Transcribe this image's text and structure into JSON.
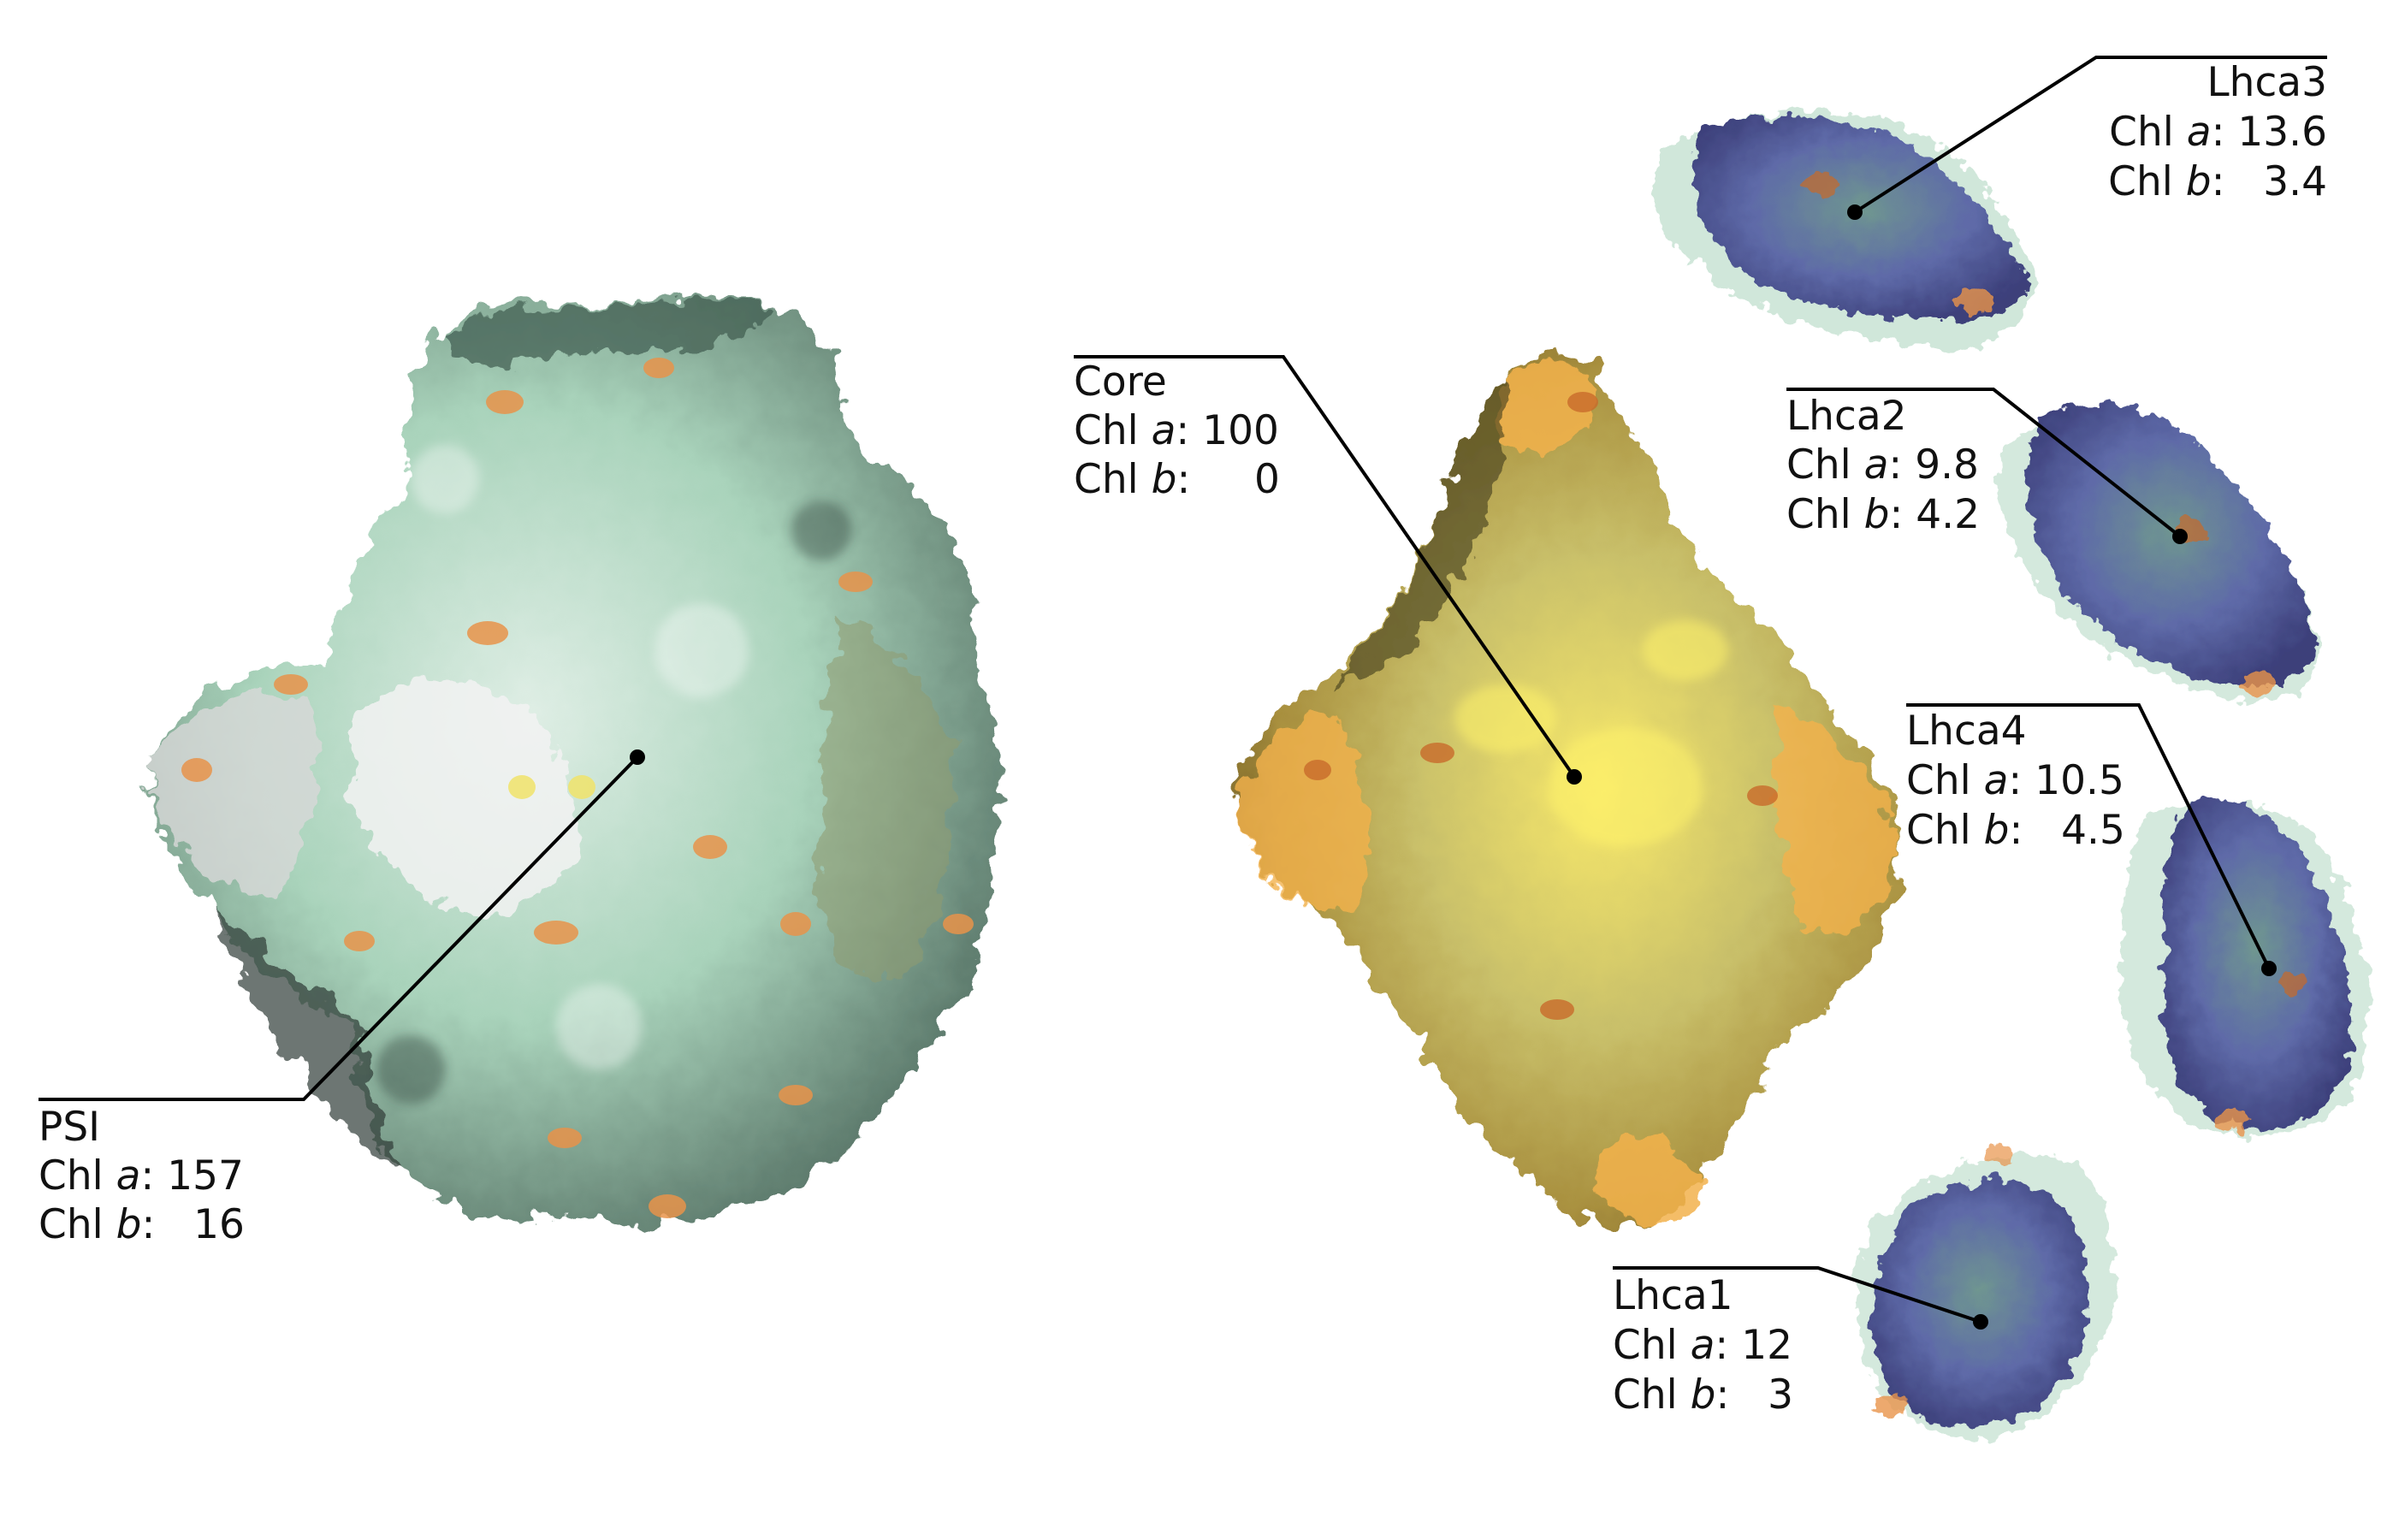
{
  "colors": {
    "psi_base": "#a9d3bb",
    "psi_shadow": "#2f3b36",
    "psi_highlight": "#efefef",
    "core_base": "#c9c06a",
    "core_orange": "#f2b24c",
    "core_yellow": "#fff06a",
    "lhc_blue": "#6b6fb8",
    "lhc_teal": "#4c7f78",
    "chlorophyll_orange": "#e8934a",
    "leader_line": "#000000"
  },
  "labels": {
    "psi": {
      "name": "PSI",
      "chl_a_prefix": "Chl ",
      "chl_a_var": "a",
      "chl_a_value": ": 157",
      "chl_b_prefix": "Chl ",
      "chl_b_var": "b",
      "chl_b_value": ":   16"
    },
    "core": {
      "name": "Core",
      "chl_a_prefix": "Chl ",
      "chl_a_var": "a",
      "chl_a_value": ": 100",
      "chl_b_prefix": "Chl ",
      "chl_b_var": "b",
      "chl_b_value": ":     0"
    },
    "lhca1": {
      "name": "Lhca1",
      "chl_a_prefix": "Chl ",
      "chl_a_var": "a",
      "chl_a_value": ": 12",
      "chl_b_prefix": "Chl ",
      "chl_b_var": "b",
      "chl_b_value": ":   3"
    },
    "lhca2": {
      "name": "Lhca2",
      "chl_a_prefix": "Chl ",
      "chl_a_var": "a",
      "chl_a_value": ": 9.8",
      "chl_b_prefix": "Chl ",
      "chl_b_var": "b",
      "chl_b_value": ": 4.2"
    },
    "lhca3": {
      "name": "Lhca3",
      "chl_a_prefix": "Chl ",
      "chl_a_var": "a",
      "chl_a_value": ": 13.6",
      "chl_b_prefix": "Chl ",
      "chl_b_var": "b",
      "chl_b_value": ":   3.4"
    },
    "lhca4": {
      "name": "Lhca4",
      "chl_a_prefix": "Chl ",
      "chl_a_var": "a",
      "chl_a_value": ": 10.5",
      "chl_b_prefix": "Chl ",
      "chl_b_var": "b",
      "chl_b_value": ":   4.5"
    }
  }
}
